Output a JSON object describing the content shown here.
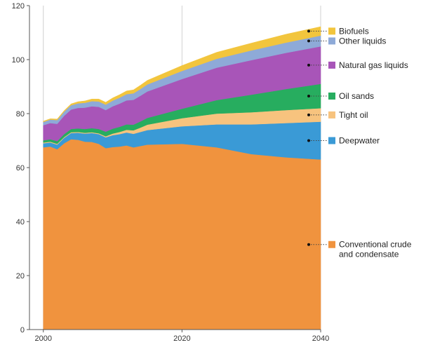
{
  "chart_data": {
    "type": "area",
    "stacked": true,
    "title": "",
    "xlabel": "",
    "ylabel": "",
    "xlim": [
      1998,
      2040
    ],
    "ylim": [
      0,
      120
    ],
    "x_ticks": [
      2000,
      2020,
      2040
    ],
    "y_ticks": [
      0,
      20,
      40,
      60,
      80,
      100,
      120
    ],
    "grid": "vertical",
    "legend": "right, leader lines from 2040",
    "x": [
      2000,
      2001,
      2002,
      2003,
      2004,
      2005,
      2006,
      2007,
      2008,
      2009,
      2010,
      2011,
      2012,
      2013,
      2014,
      2015,
      2020,
      2025,
      2030,
      2035,
      2040
    ],
    "series": [
      {
        "name": "Conventional crude and condensate",
        "color": "#f0933e",
        "values": [
          67.5,
          67.8,
          66.8,
          69.0,
          70.5,
          70.3,
          69.6,
          69.5,
          68.8,
          67.2,
          67.6,
          67.8,
          68.2,
          67.5,
          68.0,
          68.5,
          68.8,
          67.5,
          65.0,
          63.8,
          63.0
        ]
      },
      {
        "name": "Deepwater",
        "color": "#3a9ad6",
        "values": [
          1.5,
          1.5,
          1.7,
          2.0,
          2.3,
          2.6,
          3.0,
          3.3,
          3.6,
          4.0,
          4.4,
          4.6,
          4.8,
          5.0,
          5.2,
          5.4,
          6.5,
          8.5,
          11.0,
          12.7,
          14.0
        ]
      },
      {
        "name": "Tight oil",
        "color": "#f7c37e",
        "values": [
          0.3,
          0.3,
          0.3,
          0.3,
          0.3,
          0.3,
          0.3,
          0.3,
          0.3,
          0.4,
          0.6,
          0.8,
          1.0,
          1.3,
          1.6,
          2.0,
          3.0,
          4.0,
          4.5,
          4.8,
          5.0
        ]
      },
      {
        "name": "Oil sands",
        "color": "#27ad5f",
        "values": [
          0.8,
          0.9,
          1.0,
          1.1,
          1.2,
          1.3,
          1.4,
          1.5,
          1.6,
          1.7,
          1.8,
          1.9,
          2.0,
          2.1,
          2.3,
          2.5,
          3.5,
          5.0,
          6.5,
          7.8,
          9.0
        ]
      },
      {
        "name": "Natural gas liquids",
        "color": "#a855b8",
        "values": [
          5.6,
          6.0,
          6.4,
          6.8,
          7.2,
          7.6,
          7.9,
          8.1,
          8.2,
          8.0,
          8.3,
          8.6,
          8.9,
          9.2,
          9.5,
          9.8,
          11.0,
          12.0,
          12.8,
          13.4,
          13.9
        ]
      },
      {
        "name": "Other liquids",
        "color": "#8eaad8",
        "values": [
          1.2,
          1.3,
          1.4,
          1.5,
          1.6,
          1.7,
          1.8,
          1.9,
          2.0,
          2.0,
          2.1,
          2.2,
          2.3,
          2.4,
          2.5,
          2.6,
          3.0,
          3.3,
          3.6,
          3.8,
          4.0
        ]
      },
      {
        "name": "Biofuels",
        "color": "#f2c53d",
        "values": [
          0.3,
          0.3,
          0.4,
          0.4,
          0.5,
          0.6,
          0.7,
          0.8,
          0.9,
          0.9,
          1.0,
          1.1,
          1.2,
          1.3,
          1.4,
          1.5,
          2.0,
          2.4,
          2.7,
          3.1,
          3.3
        ]
      }
    ],
    "legend_entries": [
      {
        "text": "Biofuels",
        "series": 6
      },
      {
        "text": "Other liquids",
        "series": 5
      },
      {
        "text": "Natural gas liquids",
        "series": 4
      },
      {
        "text": "Oil sands",
        "series": 3
      },
      {
        "text": "Tight oil",
        "series": 2
      },
      {
        "text": "Deepwater",
        "series": 1
      },
      {
        "text": "Conventional crude\nand condensate",
        "series": 0
      }
    ]
  }
}
